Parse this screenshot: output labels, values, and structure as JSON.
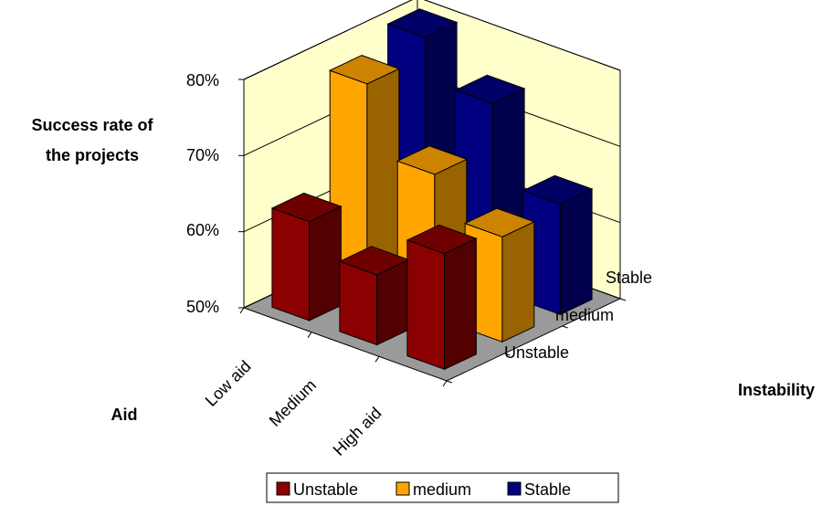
{
  "chart_data": {
    "type": "bar",
    "subtype": "3d-column",
    "title": "",
    "ylabel": "Success rate of the projects",
    "ylabel_lines": [
      "Success rate of",
      "the projects"
    ],
    "xlabel": "Aid",
    "zlabel": "Instability",
    "categories": [
      "Low aid",
      "Medium",
      "High aid"
    ],
    "depth_categories": [
      "Unstable",
      "medium",
      "Stable"
    ],
    "yticks": [
      "50%",
      "60%",
      "70%",
      "80%"
    ],
    "ylim": [
      0.5,
      0.8
    ],
    "grid": true,
    "legend_position": "bottom",
    "series": [
      {
        "name": "Unstable",
        "color": "#8b0000",
        "values": [
          0.63,
          0.592,
          0.652
        ]
      },
      {
        "name": "medium",
        "color": "#ffa500",
        "values": [
          0.775,
          0.688,
          0.638
        ]
      },
      {
        "name": "Stable",
        "color": "#000080",
        "values": [
          0.8,
          0.745,
          0.645
        ]
      }
    ]
  }
}
